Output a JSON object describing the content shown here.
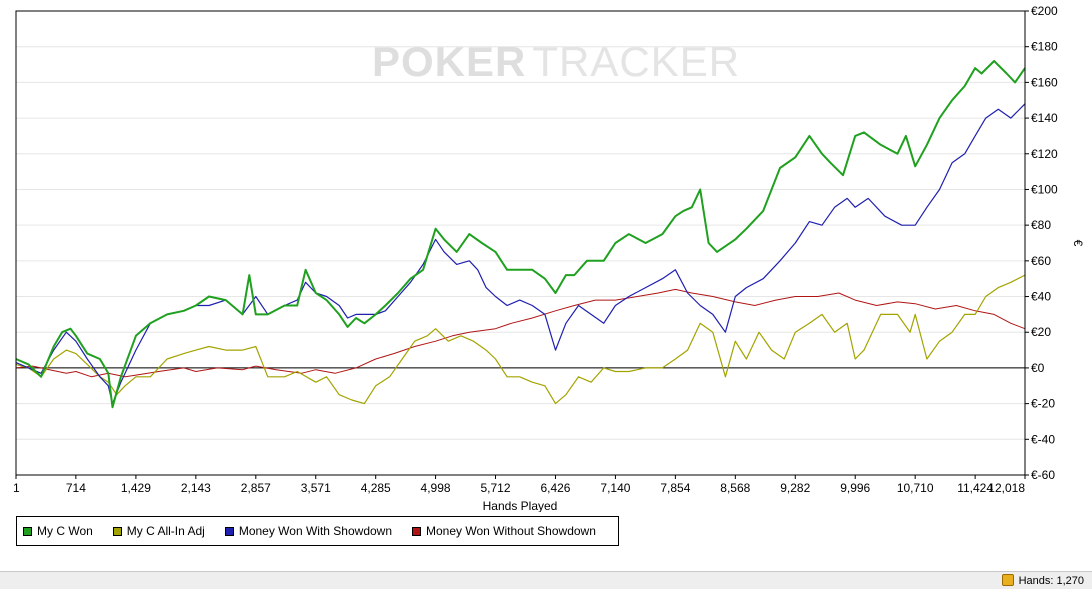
{
  "brand": {
    "word1": "POKER",
    "word2": "TRACKER"
  },
  "colors": {
    "green": "#1fa01f",
    "olive": "#a3a300",
    "blue": "#1f1fb0",
    "red": "#b01515"
  },
  "status": {
    "hands": "Hands: 1,270"
  },
  "chart_data": {
    "type": "line",
    "title": "",
    "xlabel": "Hands Played",
    "ylabel": "€",
    "xlim": [
      1,
      12018
    ],
    "ylim": [
      -60,
      200
    ],
    "x_ticks": [
      1,
      714,
      1429,
      2143,
      2857,
      3571,
      4285,
      4998,
      5712,
      6426,
      7140,
      7854,
      8568,
      9282,
      9996,
      10710,
      11424,
      12018
    ],
    "x_tick_labels": [
      "1",
      "714",
      "1,429",
      "2,143",
      "2,857",
      "3,571",
      "4,285",
      "4,998",
      "5,712",
      "6,426",
      "7,140",
      "7,854",
      "8,568",
      "9,282",
      "9,996",
      "10,710",
      "11,424",
      "12,018"
    ],
    "y_ticks": [
      -60,
      -40,
      -20,
      0,
      20,
      40,
      60,
      80,
      100,
      120,
      140,
      160,
      180,
      200
    ],
    "y_tick_labels": [
      "€-60",
      "€-40",
      "€-20",
      "€0",
      "€20",
      "€40",
      "€60",
      "€80",
      "€100",
      "€120",
      "€140",
      "€160",
      "€180",
      "€200"
    ],
    "y_axis_side": "right",
    "grid": true,
    "legend_position": "bottom-left",
    "series": [
      {
        "name": "My C Won",
        "color": "#1fa01f",
        "x": [
          1,
          150,
          300,
          450,
          550,
          650,
          714,
          850,
          1000,
          1100,
          1150,
          1250,
          1429,
          1600,
          1800,
          2000,
          2143,
          2300,
          2500,
          2700,
          2780,
          2857,
          3000,
          3200,
          3350,
          3450,
          3571,
          3700,
          3850,
          3950,
          4050,
          4150,
          4285,
          4400,
          4550,
          4700,
          4850,
          4998,
          5100,
          5250,
          5400,
          5550,
          5712,
          5850,
          6000,
          6150,
          6300,
          6426,
          6550,
          6650,
          6800,
          7000,
          7140,
          7300,
          7500,
          7700,
          7854,
          7950,
          8050,
          8150,
          8250,
          8350,
          8568,
          8700,
          8900,
          9100,
          9282,
          9450,
          9600,
          9700,
          9850,
          9996,
          10100,
          10300,
          10500,
          10600,
          10710,
          10850,
          11000,
          11150,
          11300,
          11424,
          11500,
          11650,
          11800,
          11900,
          12018
        ],
        "y": [
          5,
          2,
          -5,
          12,
          20,
          22,
          18,
          8,
          5,
          -3,
          -22,
          -5,
          18,
          25,
          30,
          32,
          35,
          40,
          38,
          30,
          52,
          30,
          30,
          35,
          35,
          55,
          42,
          38,
          30,
          23,
          28,
          25,
          30,
          35,
          42,
          50,
          55,
          78,
          72,
          65,
          75,
          70,
          65,
          55,
          55,
          55,
          50,
          42,
          52,
          52,
          60,
          60,
          70,
          75,
          70,
          75,
          85,
          88,
          90,
          100,
          70,
          65,
          72,
          78,
          88,
          112,
          118,
          130,
          120,
          115,
          108,
          130,
          132,
          125,
          120,
          130,
          113,
          125,
          140,
          150,
          158,
          168,
          165,
          172,
          165,
          160,
          168
        ]
      },
      {
        "name": "My C All-In Adj",
        "color": "#a3a300",
        "x": [
          1,
          150,
          300,
          450,
          600,
          714,
          850,
          1000,
          1100,
          1200,
          1300,
          1429,
          1600,
          1800,
          2000,
          2143,
          2300,
          2500,
          2700,
          2857,
          3000,
          3200,
          3350,
          3571,
          3700,
          3850,
          4000,
          4150,
          4285,
          4450,
          4600,
          4750,
          4900,
          4998,
          5150,
          5300,
          5450,
          5600,
          5712,
          5850,
          6000,
          6150,
          6300,
          6426,
          6550,
          6700,
          6850,
          7000,
          7140,
          7300,
          7500,
          7700,
          7854,
          8000,
          8150,
          8300,
          8450,
          8568,
          8700,
          8850,
          9000,
          9150,
          9282,
          9450,
          9600,
          9750,
          9900,
          9996,
          10100,
          10300,
          10500,
          10650,
          10710,
          10850,
          11000,
          11150,
          11300,
          11424,
          11550,
          11700,
          11850,
          12018
        ],
        "y": [
          2,
          0,
          -5,
          5,
          10,
          8,
          2,
          -5,
          -8,
          -15,
          -10,
          -5,
          -5,
          5,
          8,
          10,
          12,
          10,
          10,
          12,
          -5,
          -5,
          -2,
          -8,
          -5,
          -15,
          -18,
          -20,
          -10,
          -5,
          5,
          15,
          18,
          22,
          15,
          18,
          15,
          10,
          5,
          -5,
          -5,
          -8,
          -10,
          -20,
          -15,
          -5,
          -8,
          0,
          -2,
          -2,
          0,
          0,
          5,
          10,
          25,
          20,
          -5,
          15,
          5,
          20,
          10,
          5,
          20,
          25,
          30,
          20,
          25,
          5,
          10,
          30,
          30,
          20,
          30,
          5,
          15,
          20,
          30,
          30,
          40,
          45,
          48,
          52
        ]
      },
      {
        "name": "Money Won With Showdown",
        "color": "#1f1fb0",
        "x": [
          1,
          150,
          300,
          450,
          600,
          714,
          850,
          1000,
          1100,
          1150,
          1250,
          1429,
          1600,
          1800,
          2000,
          2143,
          2300,
          2500,
          2700,
          2857,
          3000,
          3200,
          3350,
          3450,
          3571,
          3700,
          3850,
          3950,
          4050,
          4150,
          4285,
          4400,
          4550,
          4700,
          4850,
          4998,
          5100,
          5250,
          5400,
          5500,
          5600,
          5712,
          5850,
          6000,
          6150,
          6300,
          6426,
          6550,
          6700,
          6850,
          7000,
          7140,
          7300,
          7500,
          7700,
          7854,
          8000,
          8150,
          8300,
          8450,
          8568,
          8700,
          8900,
          9100,
          9282,
          9450,
          9600,
          9750,
          9900,
          9996,
          10150,
          10350,
          10550,
          10710,
          10850,
          11000,
          11150,
          11300,
          11424,
          11550,
          11700,
          11850,
          12018
        ],
        "y": [
          3,
          0,
          -3,
          10,
          20,
          15,
          5,
          -5,
          -10,
          -20,
          -8,
          10,
          25,
          30,
          32,
          35,
          35,
          38,
          30,
          40,
          30,
          35,
          38,
          48,
          42,
          40,
          35,
          28,
          30,
          30,
          30,
          32,
          40,
          48,
          58,
          72,
          65,
          58,
          60,
          55,
          45,
          40,
          35,
          38,
          35,
          30,
          10,
          25,
          35,
          30,
          25,
          35,
          40,
          45,
          50,
          55,
          42,
          35,
          30,
          20,
          40,
          45,
          50,
          60,
          70,
          82,
          80,
          90,
          95,
          90,
          95,
          85,
          80,
          80,
          90,
          100,
          115,
          120,
          130,
          140,
          145,
          140,
          148
        ]
      },
      {
        "name": "Money Won Without Showdown",
        "color": "#b01515",
        "x": [
          1,
          200,
          400,
          600,
          714,
          900,
          1100,
          1300,
          1429,
          1700,
          2000,
          2143,
          2400,
          2700,
          2857,
          3100,
          3400,
          3571,
          3800,
          4050,
          4285,
          4500,
          4750,
          4998,
          5200,
          5400,
          5712,
          5900,
          6150,
          6426,
          6650,
          6900,
          7140,
          7400,
          7650,
          7854,
          8050,
          8300,
          8568,
          8800,
          9050,
          9282,
          9550,
          9800,
          9996,
          10250,
          10500,
          10710,
          10950,
          11200,
          11424,
          11650,
          11850,
          12018
        ],
        "y": [
          0,
          1,
          -1,
          -3,
          -2,
          -5,
          -3,
          -5,
          -4,
          -2,
          0,
          -2,
          0,
          -1,
          1,
          -1,
          -3,
          -1,
          -3,
          0,
          5,
          8,
          12,
          15,
          18,
          20,
          22,
          25,
          28,
          32,
          35,
          38,
          38,
          40,
          42,
          44,
          42,
          40,
          37,
          35,
          38,
          40,
          40,
          42,
          38,
          35,
          37,
          36,
          33,
          35,
          32,
          30,
          25,
          22
        ]
      }
    ]
  },
  "legend": {
    "items": [
      {
        "label": "My C Won",
        "color": "#1fa01f"
      },
      {
        "label": "My C All-In Adj",
        "color": "#a3a300"
      },
      {
        "label": "Money Won With Showdown",
        "color": "#1f1fb0"
      },
      {
        "label": "Money Won Without Showdown",
        "color": "#b01515"
      }
    ]
  }
}
